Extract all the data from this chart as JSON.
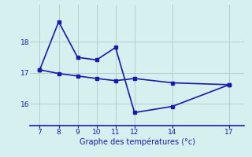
{
  "x_main": [
    7,
    8,
    9,
    10,
    11,
    12,
    14,
    17
  ],
  "y_main": [
    17.1,
    18.65,
    17.5,
    17.42,
    17.82,
    15.72,
    15.92,
    16.62
  ],
  "x_upper": [
    7,
    8,
    9,
    10,
    11,
    12,
    14,
    17
  ],
  "y_upper": [
    17.1,
    16.98,
    16.9,
    16.82,
    16.75,
    16.82,
    16.68,
    16.62
  ],
  "xlabel": "Graphe des températures (°c)",
  "yticks": [
    16,
    17,
    18
  ],
  "xticks": [
    7,
    8,
    9,
    10,
    11,
    12,
    14,
    17
  ],
  "xlim": [
    6.5,
    17.8
  ],
  "ylim": [
    15.3,
    19.2
  ],
  "bg_color": "#d5f0ee",
  "line_color": "#1a1aaa",
  "grid_color": "#b0cece",
  "line_width": 1.2,
  "marker_size": 2.5,
  "tick_fontsize": 6.5,
  "xlabel_fontsize": 7.0
}
